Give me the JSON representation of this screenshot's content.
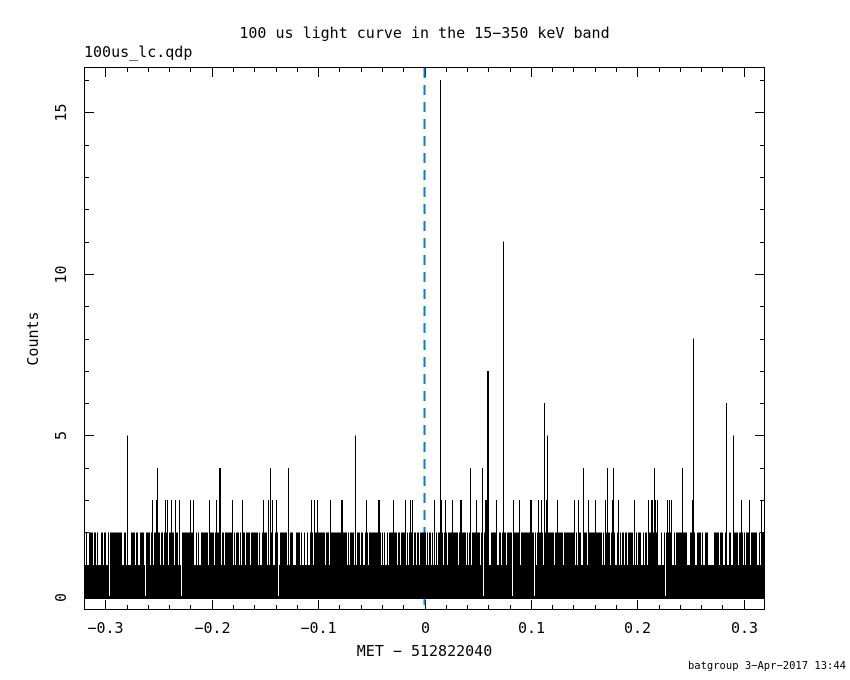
{
  "window": {
    "background": "#ffffff"
  },
  "annotations": {
    "file_label": "100us_lc.qdp",
    "credit": "batgroup  3−Apr−2017 13:44"
  },
  "chart_data": {
    "type": "line",
    "subtype": "step-histogram event light curve",
    "title": "100 us light curve in the 15−350 keV band",
    "xlabel": "MET − 512822040",
    "ylabel": "Counts",
    "xlim": [
      -0.32,
      0.32
    ],
    "ylim": [
      -0.4,
      16.4
    ],
    "grid": false,
    "frame_color": "#000000",
    "data_color": "#000000",
    "x_major_ticks": [
      {
        "value": -0.3,
        "label": "−0.3"
      },
      {
        "value": -0.2,
        "label": "−0.2"
      },
      {
        "value": -0.1,
        "label": "−0.1"
      },
      {
        "value": 0,
        "label": "0"
      },
      {
        "value": 0.1,
        "label": "0.1"
      },
      {
        "value": 0.2,
        "label": "0.2"
      },
      {
        "value": 0.3,
        "label": "0.3"
      }
    ],
    "x_minor_step": 0.02,
    "y_major_ticks": [
      {
        "value": 0,
        "label": "0"
      },
      {
        "value": 5,
        "label": "5"
      },
      {
        "value": 10,
        "label": "10"
      },
      {
        "value": 15,
        "label": "15"
      }
    ],
    "y_minor_step": 1,
    "trigger_line": {
      "x": 0,
      "style": "dashed",
      "color": "#0b79d8"
    },
    "bin_width_s": 0.0001,
    "n_bins": 6400,
    "background_noise": {
      "description": "per-pixel-column maximum of ~9 consecutive 100us bins, counts mostly 0-3",
      "columns": 681,
      "seed": 20170403,
      "col_max_cumulative_probs": {
        "0": 0.02,
        "1": 0.3,
        "2": 0.9,
        "3": 1.0
      }
    },
    "spikes": [
      {
        "t": -0.28,
        "counts": 5
      },
      {
        "t": -0.251,
        "counts": 4
      },
      {
        "t": -0.193,
        "counts": 4,
        "w": 2
      },
      {
        "t": -0.145,
        "counts": 4
      },
      {
        "t": -0.128,
        "counts": 4
      },
      {
        "t": -0.065,
        "counts": 5
      },
      {
        "t": 0.0145,
        "counts": 16
      },
      {
        "t": 0.043,
        "counts": 4
      },
      {
        "t": 0.054,
        "counts": 4
      },
      {
        "t": 0.057,
        "counts": 3,
        "w": 2
      },
      {
        "t": 0.0585,
        "counts": 7,
        "w": 2
      },
      {
        "t": 0.0735,
        "counts": 11
      },
      {
        "t": 0.112,
        "counts": 6
      },
      {
        "t": 0.1155,
        "counts": 5
      },
      {
        "t": 0.149,
        "counts": 4
      },
      {
        "t": 0.1715,
        "counts": 4
      },
      {
        "t": 0.177,
        "counts": 4
      },
      {
        "t": 0.216,
        "counts": 4
      },
      {
        "t": 0.242,
        "counts": 4
      },
      {
        "t": 0.2525,
        "counts": 8
      },
      {
        "t": 0.2835,
        "counts": 6
      },
      {
        "t": 0.29,
        "counts": 5
      }
    ]
  }
}
